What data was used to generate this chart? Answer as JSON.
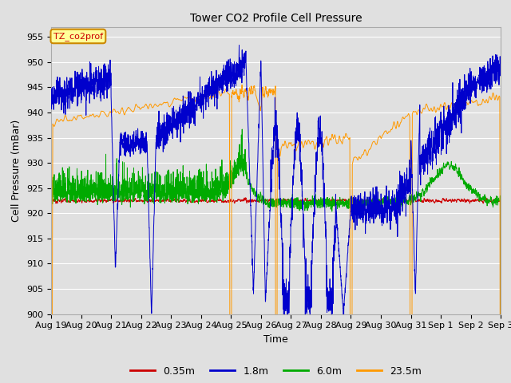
{
  "title": "Tower CO2 Profile Cell Pressure",
  "xlabel": "Time",
  "ylabel": "Cell Pressure (mBar)",
  "ylim": [
    900,
    957
  ],
  "yticks": [
    900,
    905,
    910,
    915,
    920,
    925,
    930,
    935,
    940,
    945,
    950,
    955
  ],
  "date_labels": [
    "Aug 19",
    "Aug 20",
    "Aug 21",
    "Aug 22",
    "Aug 23",
    "Aug 24",
    "Aug 25",
    "Aug 26",
    "Aug 27",
    "Aug 28",
    "Aug 29",
    "Aug 30",
    "Aug 31",
    "Sep 1",
    "Sep 2",
    "Sep 3"
  ],
  "series_labels": [
    "0.35m",
    "1.8m",
    "6.0m",
    "23.5m"
  ],
  "series_colors": [
    "#cc0000",
    "#0000cc",
    "#00aa00",
    "#ff9900"
  ],
  "plot_bg_color": "#e0e0e0",
  "grid_color": "#ffffff",
  "annotation_text": "TZ_co2prof",
  "annotation_color": "#cc0000",
  "annotation_bg": "#ffff99",
  "annotation_border": "#cc8800",
  "figsize": [
    6.4,
    4.8
  ],
  "dpi": 100
}
